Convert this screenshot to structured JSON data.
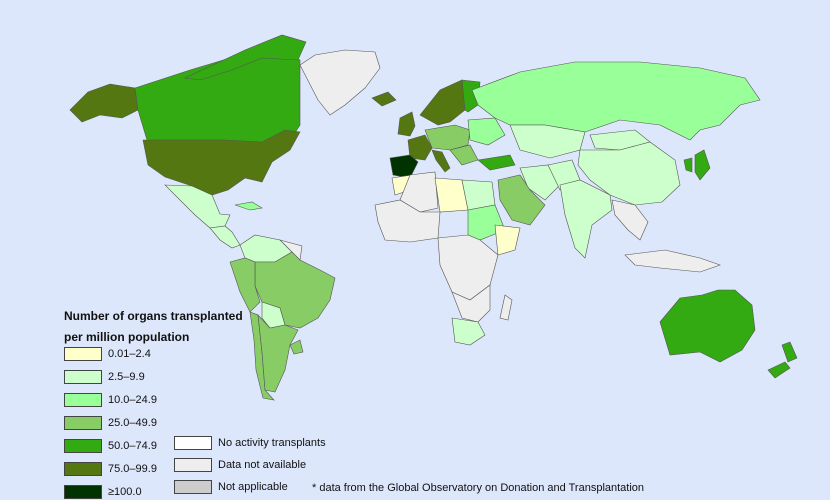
{
  "colors": {
    "ocean": "#dde7fb",
    "c1": "#ffffcc",
    "c2": "#ccffcc",
    "c3": "#99ff99",
    "c4": "#88cc66",
    "c5": "#33aa11",
    "c6": "#557711",
    "c7": "#003300",
    "none": "#ffffff",
    "na": "#eeeeee",
    "notapp": "#cccccc"
  },
  "legend": {
    "title_line1": "Number of organs transplanted",
    "title_line2": "per million population",
    "items": [
      {
        "label": "0.01–2.4",
        "color": "#ffffcc"
      },
      {
        "label": "2.5–9.9",
        "color": "#ccffcc"
      },
      {
        "label": "10.0–24.9",
        "color": "#99ff99"
      },
      {
        "label": "25.0–49.9",
        "color": "#88cc66"
      },
      {
        "label": "50.0–74.9",
        "color": "#33aa11"
      },
      {
        "label": "75.0–99.9",
        "color": "#557711"
      },
      {
        "label": "≥100.0",
        "color": "#003300"
      }
    ],
    "extra_items": [
      {
        "label": "No activity transplants",
        "color": "#ffffff"
      },
      {
        "label": "Data not available",
        "color": "#eeeeee"
      },
      {
        "label": "Not applicable",
        "color": "#cccccc"
      }
    ]
  },
  "footnote": "* data from the Global Observatory on Donation and Transplantation"
}
